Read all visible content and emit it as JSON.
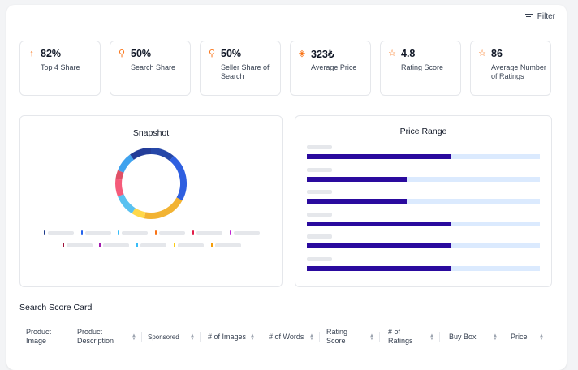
{
  "filter": {
    "label": "Filter",
    "icon": "filter-icon"
  },
  "stats": [
    {
      "icon": "arrow-up-icon",
      "glyph": "↑",
      "value": "82%",
      "label": "Top 4 Share"
    },
    {
      "icon": "search-icon",
      "glyph": "⚲",
      "value": "50%",
      "label": "Search Share"
    },
    {
      "icon": "search-icon",
      "glyph": "⚲",
      "value": "50%",
      "label": "Seller Share of Search"
    },
    {
      "icon": "price-tag-icon",
      "glyph": "◈",
      "value": "323₺",
      "label": "Average Price"
    },
    {
      "icon": "star-icon",
      "glyph": "☆",
      "value": "4.8",
      "label": "Rating Score"
    },
    {
      "icon": "star-icon",
      "glyph": "☆",
      "value": "86",
      "label": "Average Number of Ratings"
    }
  ],
  "snapshot": {
    "title": "Snapshot",
    "segments": [
      {
        "value": 11,
        "color": "#2647a8"
      },
      {
        "value": 22,
        "color": "#2f5fe0"
      },
      {
        "value": 20,
        "color": "#f2b333"
      },
      {
        "value": 6,
        "color": "#ffd84a"
      },
      {
        "value": 10,
        "color": "#59c1f0"
      },
      {
        "value": 8,
        "color": "#f55b7a"
      },
      {
        "value": 4,
        "color": "#e05066"
      },
      {
        "value": 9,
        "color": "#3fa2ee"
      },
      {
        "value": 10,
        "color": "#243d99"
      }
    ],
    "legend_colors": [
      "#1e3a8a",
      "#2563eb",
      "#38bdf8",
      "#f97316",
      "#e11d48",
      "#c026d3",
      "#9f1239",
      "#a21caf",
      "#38bdf8",
      "#facc15",
      "#f59e0b"
    ]
  },
  "chart_data": {
    "type": "bar",
    "title": "Price Range",
    "categories": [
      "",
      "",
      "",
      "",
      "",
      ""
    ],
    "values": [
      0.62,
      0.43,
      0.43,
      0.62,
      0.62,
      0.62
    ],
    "xlim": [
      0,
      1
    ]
  },
  "score_card": {
    "title": "Search Score Card",
    "columns": [
      {
        "label": "Product Image",
        "sortable": false
      },
      {
        "label": "Product Description",
        "sortable": true
      },
      {
        "label": "Sponsored",
        "sortable": true
      },
      {
        "label": "# of Images",
        "sortable": true
      },
      {
        "label": "# of Words",
        "sortable": true
      },
      {
        "label": "Rating Score",
        "sortable": true
      },
      {
        "label": "# of Ratings",
        "sortable": true
      },
      {
        "label": "Buy Box",
        "sortable": true
      },
      {
        "label": "Price",
        "sortable": true
      }
    ]
  }
}
